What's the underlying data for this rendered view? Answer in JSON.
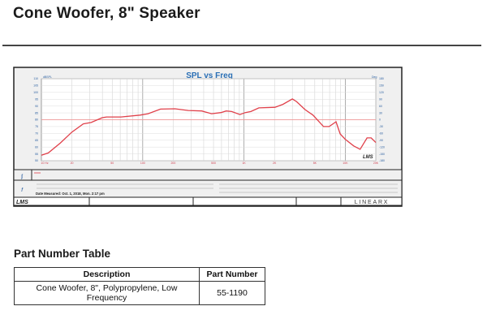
{
  "page_title": "Cone Woofer, 8\" Speaker",
  "chart_data": {
    "type": "line",
    "title": "SPL vs Freq",
    "xscale": "log",
    "xlim": [
      10,
      20000
    ],
    "ylim": [
      50,
      110
    ],
    "y_unit_label": "dBSPL",
    "y2_unit_label": "Deg",
    "x_tick_labels": [
      {
        "value": 10,
        "label": "10 Hz"
      },
      {
        "value": 20,
        "label": "20"
      },
      {
        "value": 50,
        "label": "50"
      },
      {
        "value": 100,
        "label": "100"
      },
      {
        "value": 200,
        "label": "200"
      },
      {
        "value": 500,
        "label": "500"
      },
      {
        "value": 1000,
        "label": "1K"
      },
      {
        "value": 2000,
        "label": "2K"
      },
      {
        "value": 5000,
        "label": "5K"
      },
      {
        "value": 10000,
        "label": "10K"
      },
      {
        "value": 20000,
        "label": "20K"
      }
    ],
    "y_ticks": [
      110,
      105,
      100,
      95,
      90,
      85,
      80,
      75,
      70,
      65,
      60,
      55,
      50
    ],
    "y2_ticks": [
      180,
      150,
      120,
      90,
      60,
      30,
      0,
      -30,
      -60,
      -90,
      -120,
      -150,
      -180
    ],
    "grid": true,
    "reference_line_y": 80,
    "series": [
      {
        "color": "#e0404a",
        "x": [
          10,
          11.7,
          15.4,
          20,
          25.9,
          31,
          39.8,
          44,
          61,
          94,
          113,
          150,
          208,
          282,
          383,
          478,
          592,
          667,
          755,
          912,
          1030,
          1170,
          1400,
          2020,
          2430,
          3000,
          3300,
          4000,
          4800,
          6100,
          6920,
          8100,
          8900,
          10000,
          12100,
          14000,
          16400,
          18000,
          20000
        ],
        "y": [
          54,
          55.7,
          63,
          71,
          77,
          78,
          81.5,
          82,
          82,
          83.4,
          84.4,
          87.8,
          88,
          86.8,
          86.4,
          84.4,
          85.2,
          86.4,
          86,
          83.8,
          85.2,
          86,
          88.7,
          89.1,
          91.3,
          95.2,
          93.3,
          87.4,
          83.4,
          75,
          75,
          78.5,
          69.6,
          65.7,
          60.8,
          58.4,
          66.7,
          66.7,
          63.3
        ]
      }
    ]
  },
  "chart_footer": {
    "date_measured": "Date Measured: Oct. 1, 2018, Mon. 2:17 pm",
    "logo_left": "LMS",
    "logo_right": "LINEARX"
  },
  "part_table": {
    "title": "Part Number Table",
    "headers": [
      "Description",
      "Part Number"
    ],
    "rows": [
      [
        "Cone Woofer, 8\", Polypropylene, Low Frequency",
        "55-1190"
      ]
    ]
  },
  "colors": {
    "curve": "#e0404a",
    "chart_title": "#2a6fb5",
    "axis_labels": "#2a5fa0"
  }
}
